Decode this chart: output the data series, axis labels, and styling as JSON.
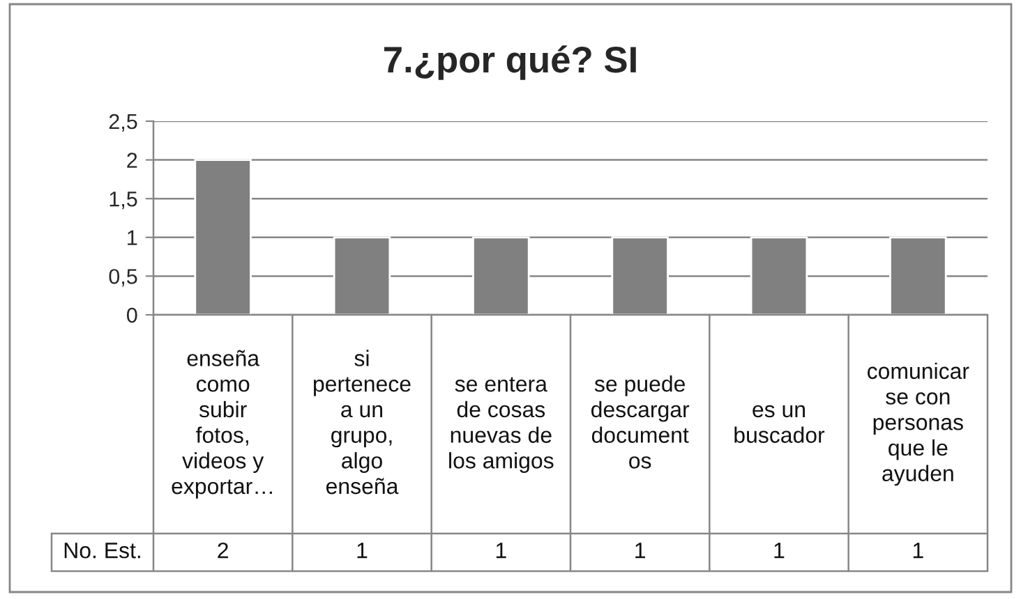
{
  "chart_data": {
    "type": "bar",
    "title": "7.¿por qué? SI",
    "categories": [
      "enseña\ncomo\nsubir\nfotos,\nvideos y\nexportar…",
      "si\npertenece\na un\ngrupo,\nalgo\nenseña",
      "se entera\nde cosas\nnuevas de\nlos amigos",
      "se puede\ndescargar\ndocument\nos",
      "es un\nbuscador",
      "comunicar\nse con\npersonas\nque le\nayuden"
    ],
    "series": [
      {
        "name": "No. Est.",
        "color": "#808080",
        "values": [
          2,
          1,
          1,
          1,
          1,
          1
        ]
      }
    ],
    "ylim": [
      0,
      2.5
    ],
    "yticks": [
      0,
      {
        "value": 0.5,
        "label": "0,5"
      },
      1,
      {
        "value": 1.5,
        "label": "1,5"
      },
      2,
      {
        "value": 2.5,
        "label": "2,5"
      }
    ],
    "grid": "y",
    "data_labels": true
  }
}
